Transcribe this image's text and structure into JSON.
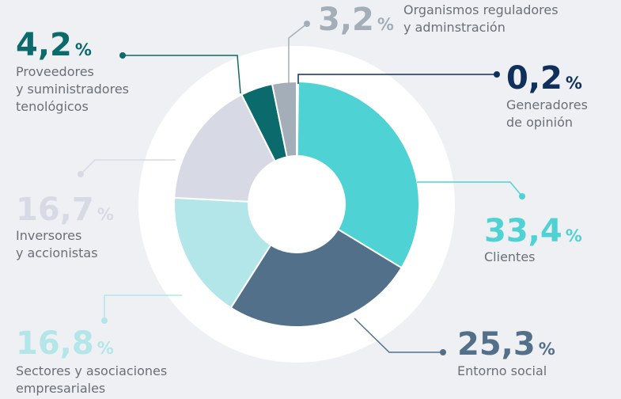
{
  "chart_data": {
    "type": "donut",
    "categories": [
      [
        "Generadores",
        "de opinión"
      ],
      [
        "Clientes"
      ],
      [
        "Entorno social"
      ],
      [
        "Sectores y asociaciones",
        "empresariales"
      ],
      [
        "Inversores",
        "y accionistas"
      ],
      [
        "Proveedores",
        "y suministradores",
        "tenológicos"
      ],
      [
        "Organismos reguladores",
        "y adminstración"
      ]
    ],
    "values": [
      0.2,
      33.4,
      25.3,
      16.8,
      16.7,
      4.2,
      3.2
    ],
    "value_labels": [
      "0,2",
      "33,4",
      "25,3",
      "16,8",
      "16,7",
      "4,2",
      "3,2"
    ],
    "unit": "%",
    "colors": [
      "#0f2f5c",
      "#4fd2d4",
      "#527089",
      "#b2e6e8",
      "#d7dae4",
      "#0b6a6b",
      "#a3aeb9"
    ]
  }
}
